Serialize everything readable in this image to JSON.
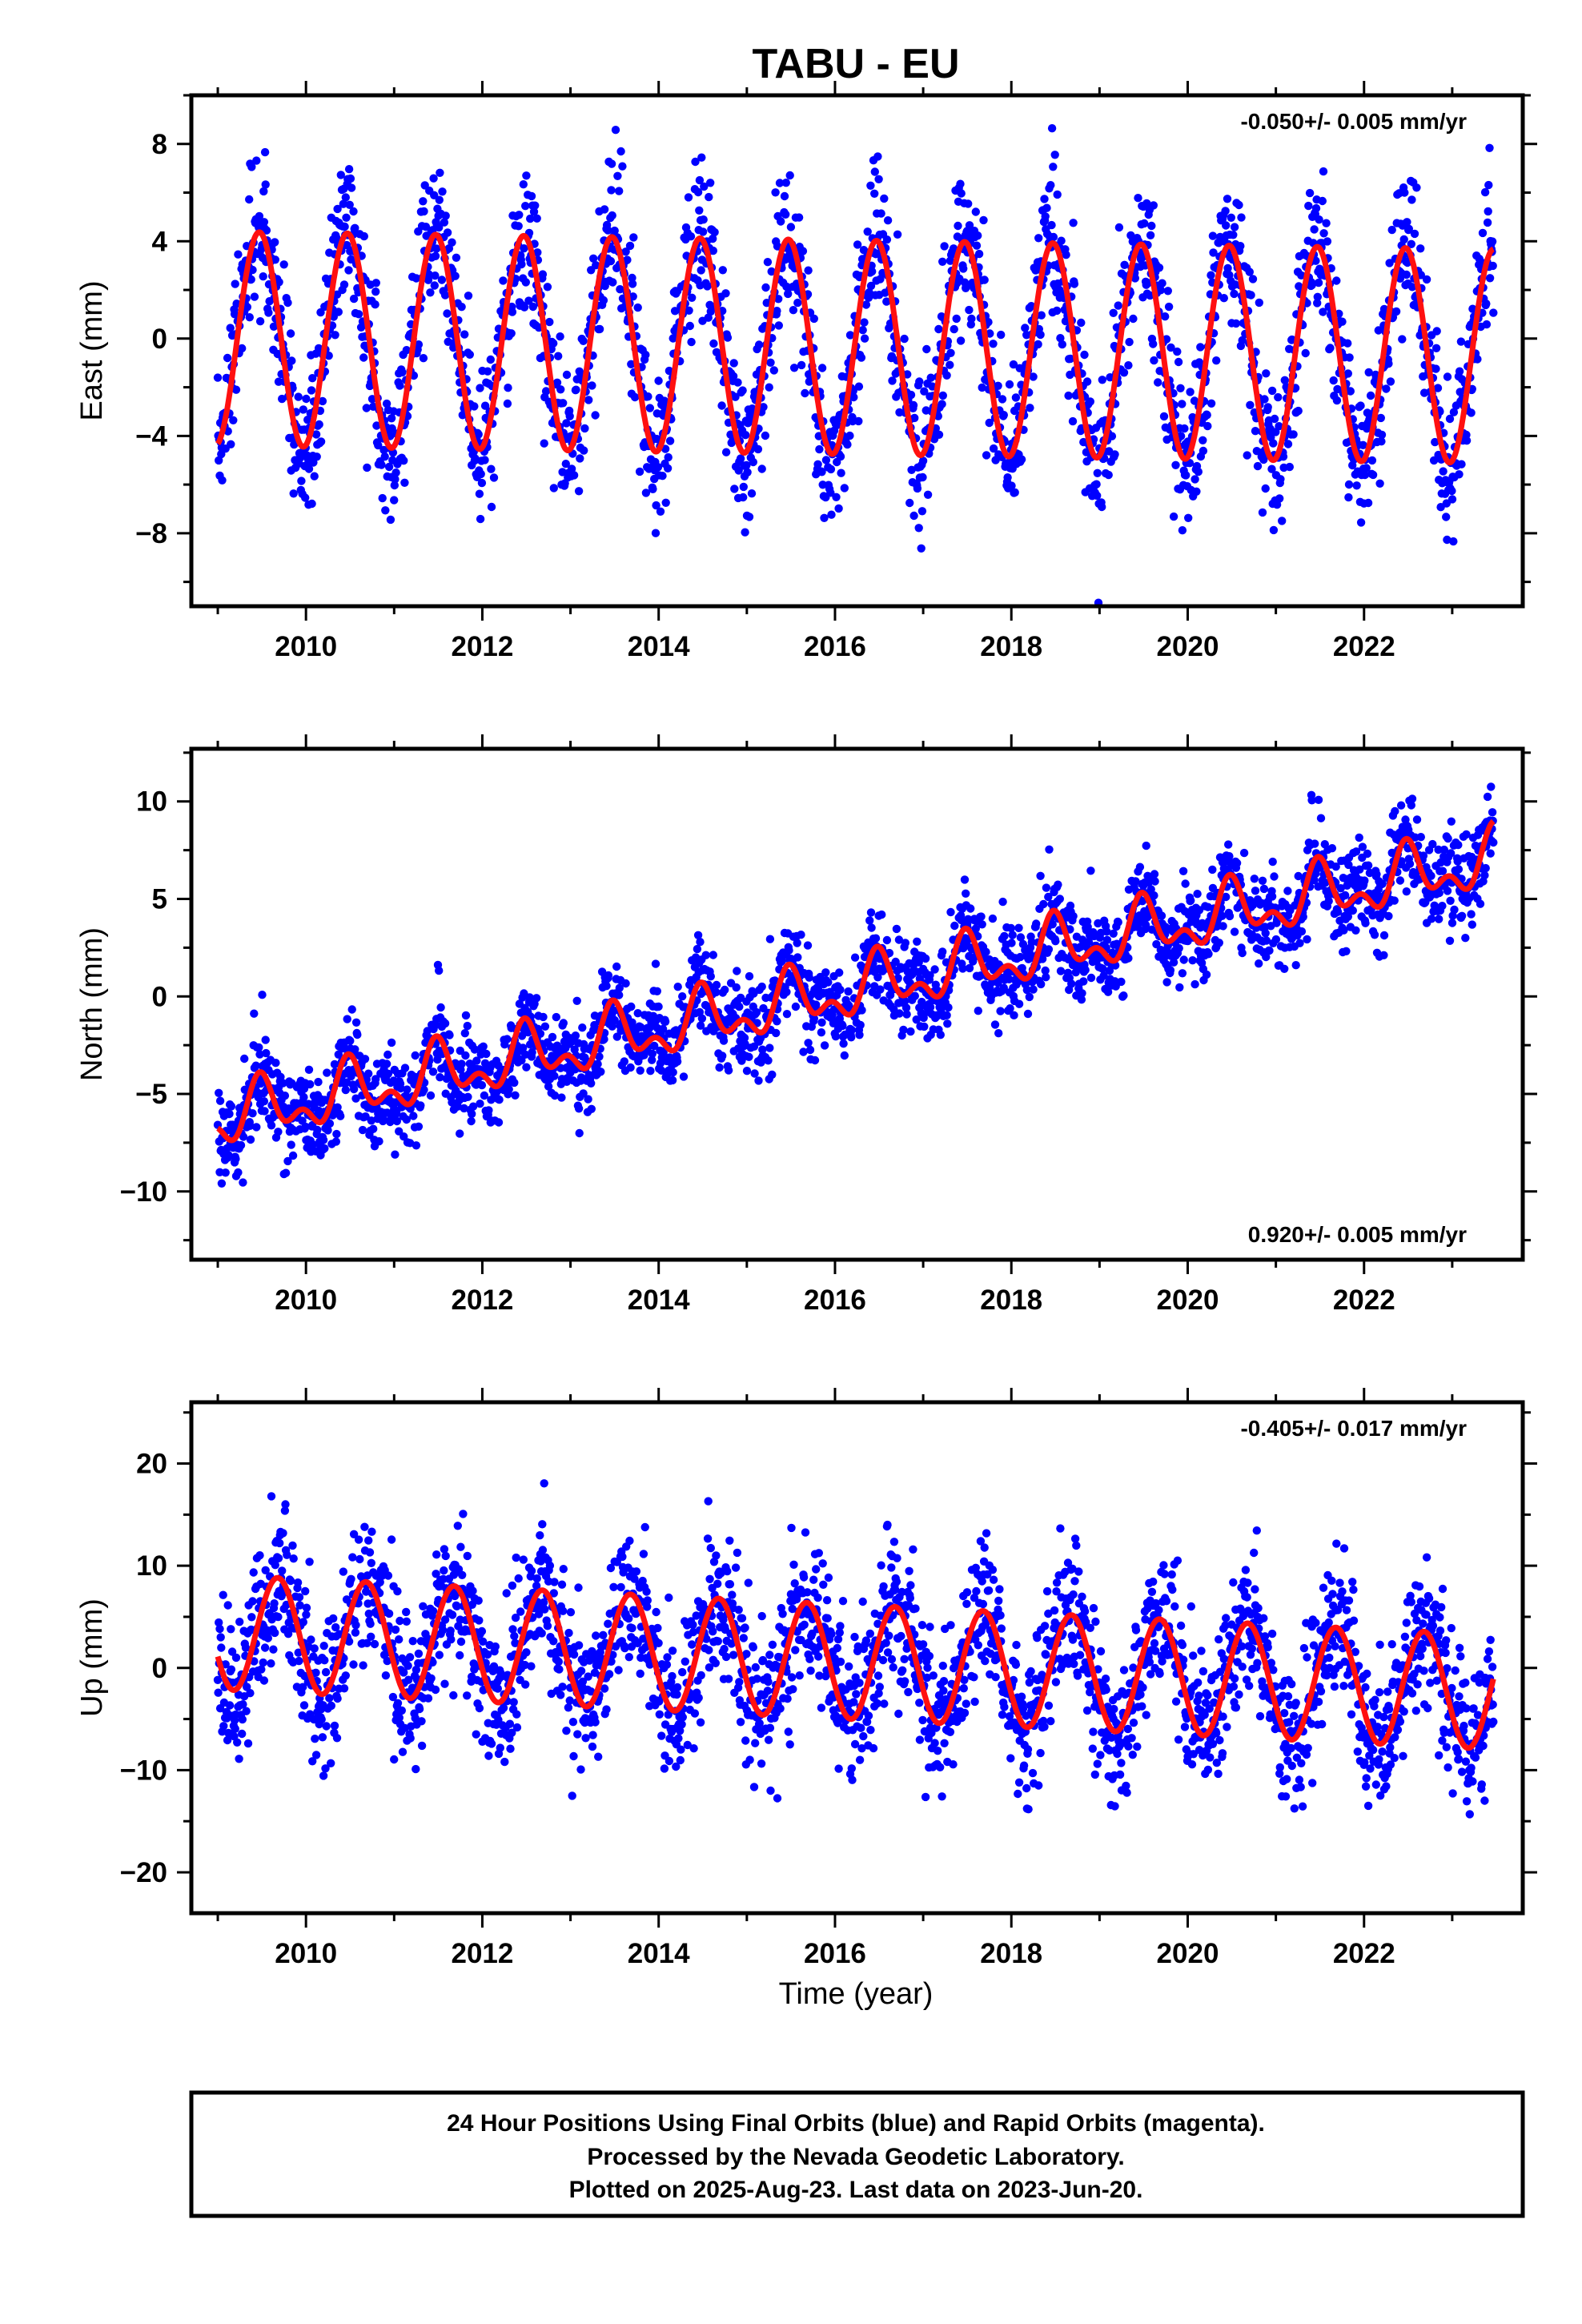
{
  "title": "TABU - EU",
  "xlabel": "Time (year)",
  "footer": {
    "lines": [
      "24 Hour Positions Using Final Orbits (blue) and Rapid Orbits (magenta).",
      "Processed by the Nevada Geodetic Laboratory.",
      "Plotted on 2025-Aug-23. Last data on 2023-Jun-20."
    ]
  },
  "colors": {
    "points": "#0000ff",
    "model": "#ff1010",
    "frame": "#000000"
  },
  "chart_data": [
    {
      "type": "scatter",
      "ylabel": "East (mm)",
      "rate_text": "-0.050+/- 0.005 mm/yr",
      "rate_position": "top-right",
      "xlim": [
        2008.7,
        2023.8
      ],
      "ylim": [
        -11,
        10
      ],
      "x_ticks": [
        2010,
        2012,
        2014,
        2016,
        2018,
        2020,
        2022
      ],
      "x_tick_labels": [
        "2010",
        "2012",
        "2014",
        "2016",
        "2018",
        "2020",
        "2022"
      ],
      "y_ticks": [
        -8,
        -4,
        0,
        4,
        8
      ],
      "y_tick_labels": [
        "−8",
        "−4",
        "0",
        "4",
        "8"
      ],
      "data_range": [
        2009.0,
        2023.47
      ],
      "series": [
        {
          "kind": "daily positions (points)",
          "trend_mm_per_yr": -0.05,
          "offset_mm": 0,
          "annual_amplitude_mm": 4.4,
          "annual_peak_phase_year": 0.47,
          "scatter_sd_mm": 1.5
        },
        {
          "kind": "model (line)",
          "values_from": "trend + seasonal",
          "extremes": [
            [
              2009.47,
              4.4
            ],
            [
              2009.95,
              -4.6
            ],
            [
              2023.0,
              -5.2
            ],
            [
              2022.47,
              3.8
            ]
          ]
        }
      ]
    },
    {
      "type": "scatter",
      "ylabel": "North (mm)",
      "rate_text": "0.920+/- 0.005 mm/yr",
      "rate_position": "bottom-right",
      "xlim": [
        2008.7,
        2023.8
      ],
      "ylim": [
        -13.5,
        12.7
      ],
      "x_ticks": [
        2010,
        2012,
        2014,
        2016,
        2018,
        2020,
        2022
      ],
      "x_tick_labels": [
        "2010",
        "2012",
        "2014",
        "2016",
        "2018",
        "2020",
        "2022"
      ],
      "y_ticks": [
        -10,
        -5,
        0,
        5,
        10
      ],
      "y_tick_labels": [
        "−10",
        "−5",
        "0",
        "5",
        "10"
      ],
      "data_range": [
        2009.0,
        2023.47
      ],
      "series": [
        {
          "kind": "daily positions (points)",
          "trend_mm_per_yr": 0.92,
          "value_at_2009_mm": -6.3,
          "annual_amplitude_mm": 1.2,
          "semiannual_amplitude_mm": 0.8,
          "scatter_sd_mm": 1.2
        },
        {
          "kind": "model (line)",
          "values_from": "trend + seasonal",
          "extremes": [
            [
              2009.45,
              -3.7
            ],
            [
              2009.8,
              -7.2
            ],
            [
              2019.45,
              5.4
            ],
            [
              2022.45,
              8.2
            ],
            [
              2023.45,
              9.0
            ]
          ]
        }
      ]
    },
    {
      "type": "scatter",
      "ylabel": "Up (mm)",
      "rate_text": "-0.405+/- 0.017 mm/yr",
      "rate_position": "top-right",
      "xlim": [
        2008.7,
        2023.8
      ],
      "ylim": [
        -24,
        26
      ],
      "x_ticks": [
        2010,
        2012,
        2014,
        2016,
        2018,
        2020,
        2022
      ],
      "x_tick_labels": [
        "2010",
        "2012",
        "2014",
        "2016",
        "2018",
        "2020",
        "2022"
      ],
      "y_ticks": [
        -20,
        -10,
        0,
        10,
        20
      ],
      "y_tick_labels": [
        "−20",
        "−10",
        "0",
        "10",
        "20"
      ],
      "data_range": [
        2009.0,
        2023.47
      ],
      "series": [
        {
          "kind": "daily positions (points)",
          "trend_mm_per_yr": -0.405,
          "value_at_2009_mm": 3.5,
          "annual_amplitude_mm": 5.6,
          "annual_peak_phase_year": 0.68,
          "scatter_sd_mm": 3.6
        },
        {
          "kind": "model (line)",
          "values_from": "trend + seasonal",
          "extremes": [
            [
              2009.68,
              8.6
            ],
            [
              2010.2,
              -2.3
            ],
            [
              2023.2,
              -7.6
            ],
            [
              2022.68,
              3.5
            ]
          ]
        }
      ]
    }
  ]
}
